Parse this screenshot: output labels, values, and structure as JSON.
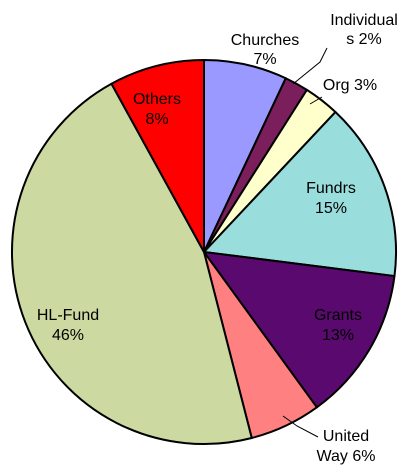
{
  "chart_data": {
    "type": "pie",
    "title": "",
    "start_angle_deg": 0,
    "direction": "clockwise",
    "slices": [
      {
        "category": "Churches",
        "value": 7,
        "value_label": "7%",
        "label_lines": [
          "Churches",
          "7%"
        ],
        "color": "#9999ff"
      },
      {
        "category": "Individuals",
        "value": 2,
        "value_label": "2%",
        "label_lines": [
          "Individual",
          "s 2%"
        ],
        "color": "#7b1f5c"
      },
      {
        "category": "Org",
        "value": 3,
        "value_label": "3%",
        "label_lines": [
          "Org 3%"
        ],
        "color": "#ffffcc"
      },
      {
        "category": "Fundrs",
        "value": 15,
        "value_label": "15%",
        "label_lines": [
          "Fundrs",
          "15%"
        ],
        "color": "#99dddd"
      },
      {
        "category": "Grants",
        "value": 13,
        "value_label": "13%",
        "label_lines": [
          "Grants",
          "13%"
        ],
        "color": "#5a0a6e"
      },
      {
        "category": "United Way",
        "value": 6,
        "value_label": "6%",
        "label_lines": [
          "United",
          "Way 6%"
        ],
        "color": "#ff8080"
      },
      {
        "category": "HL-Fund",
        "value": 46,
        "value_label": "46%",
        "label_lines": [
          "HL-Fund",
          "46%"
        ],
        "color": "#ccd9a0"
      },
      {
        "category": "Others",
        "value": 8,
        "value_label": "8%",
        "label_lines": [
          "Others",
          "8%"
        ],
        "color": "#ff0000"
      }
    ],
    "legend": "none"
  }
}
